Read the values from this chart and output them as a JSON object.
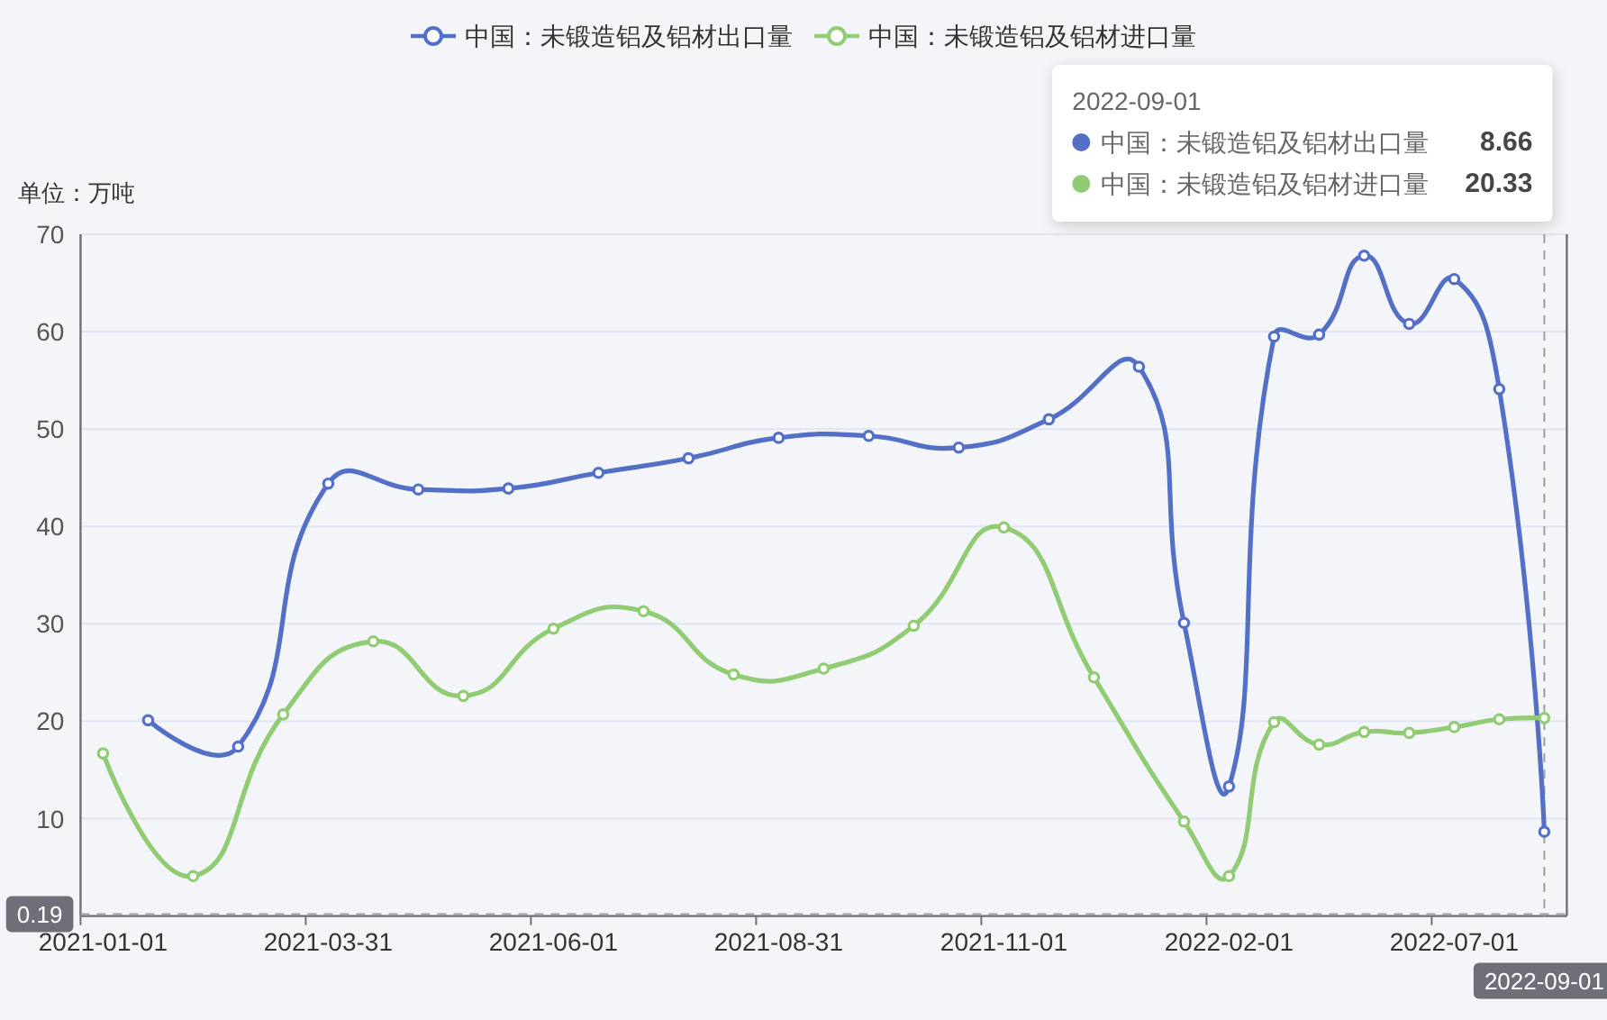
{
  "chart_data": {
    "type": "line",
    "ylabel": "单位：万吨",
    "categories": [
      "2021-01-01",
      null,
      null,
      null,
      null,
      "2021-03-31",
      null,
      null,
      null,
      null,
      "2021-06-01",
      null,
      null,
      null,
      null,
      "2021-08-31",
      null,
      null,
      null,
      null,
      "2021-11-01",
      null,
      null,
      null,
      null,
      "2022-02-01",
      null,
      null,
      null,
      null,
      "2022-07-01",
      null,
      "2022-09-01"
    ],
    "series": [
      {
        "name": "中国：未锻造铝及铝材出口量",
        "color": "#5470c6",
        "values": [
          null,
          20.1,
          null,
          17.4,
          null,
          44.4,
          null,
          43.8,
          null,
          43.9,
          null,
          45.5,
          null,
          47.0,
          null,
          49.1,
          null,
          49.3,
          null,
          48.1,
          null,
          51.0,
          null,
          56.4,
          30.1,
          13.3,
          59.5,
          59.7,
          67.8,
          60.8,
          65.4,
          54.1,
          8.66
        ]
      },
      {
        "name": "中国：未锻造铝及铝材进口量",
        "color": "#91cc75",
        "values": [
          16.7,
          null,
          4.1,
          null,
          20.7,
          null,
          28.2,
          null,
          22.6,
          null,
          29.5,
          null,
          31.3,
          null,
          24.8,
          null,
          25.4,
          null,
          29.8,
          null,
          39.9,
          null,
          24.5,
          null,
          9.7,
          4.1,
          19.9,
          17.6,
          18.9,
          18.8,
          19.4,
          20.2,
          20.33
        ]
      }
    ],
    "annotations": [
      "8.66",
      "20.33"
    ],
    "ylim": [
      0,
      70
    ],
    "yticks": [
      10,
      20,
      30,
      40,
      50,
      60,
      70
    ],
    "grid": "y",
    "legend": "top",
    "marker": "circle",
    "line_style": "solid",
    "ref_lines": [
      {
        "axis": "y",
        "value": 0.19,
        "label": "0.19",
        "line_style": "dashed"
      },
      {
        "axis": "x",
        "value": "2022-09-01",
        "line_style": "dashed"
      }
    ]
  }
}
